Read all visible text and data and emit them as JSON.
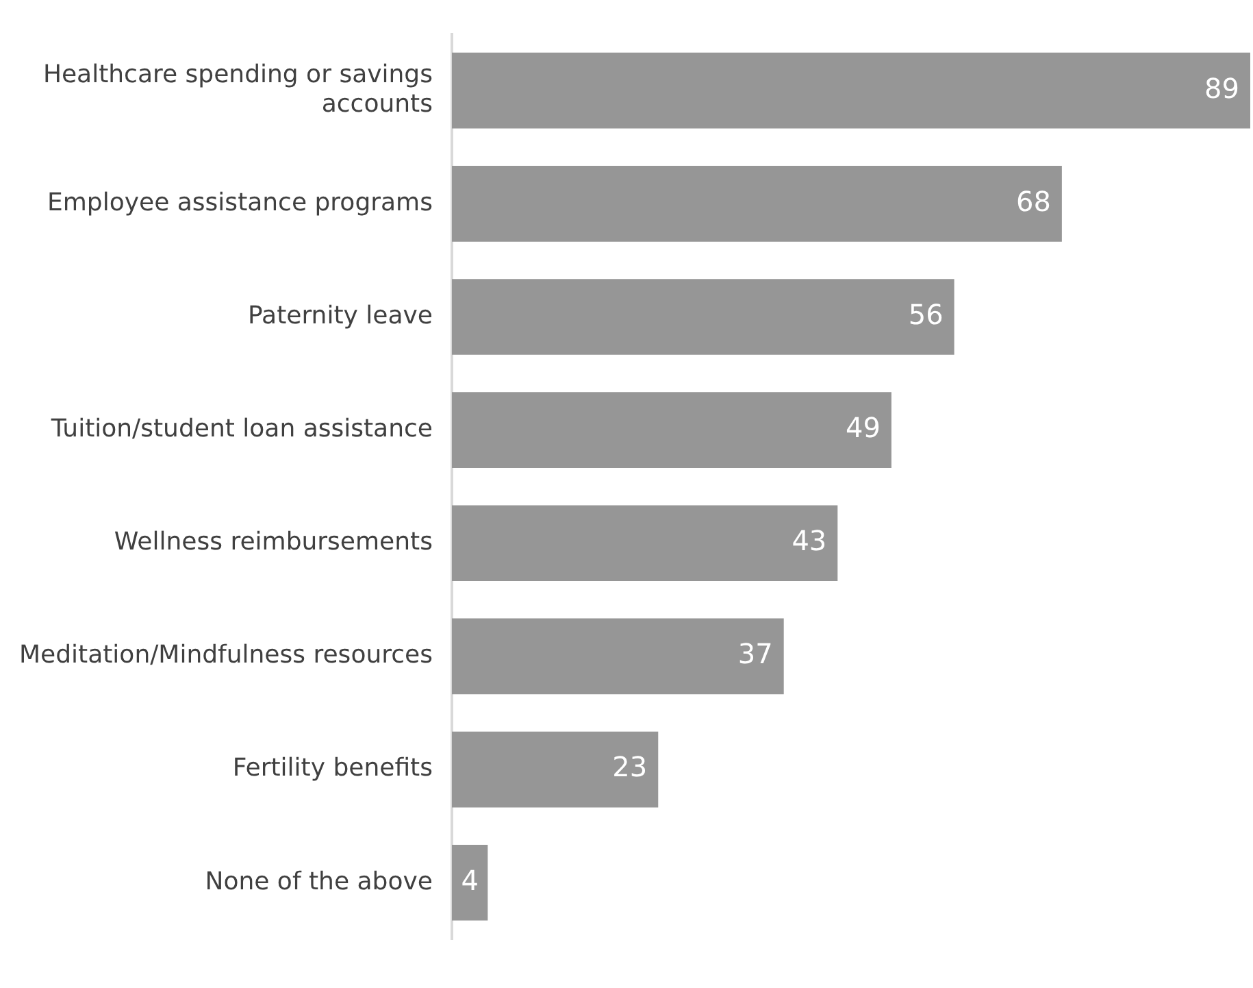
{
  "chart_data": {
    "type": "bar",
    "orientation": "horizontal",
    "data_labels": true,
    "legend": false,
    "categories": [
      "Healthcare spending or savings accounts",
      "Employee assistance programs",
      "Paternity leave",
      "Tuition/student loan assistance",
      "Wellness reimbursements",
      "Meditation/Mindfulness resources",
      "Fertility benefits",
      "None of the above"
    ],
    "values": [
      89,
      68,
      56,
      49,
      43,
      37,
      23,
      4
    ],
    "color": "#969696"
  }
}
